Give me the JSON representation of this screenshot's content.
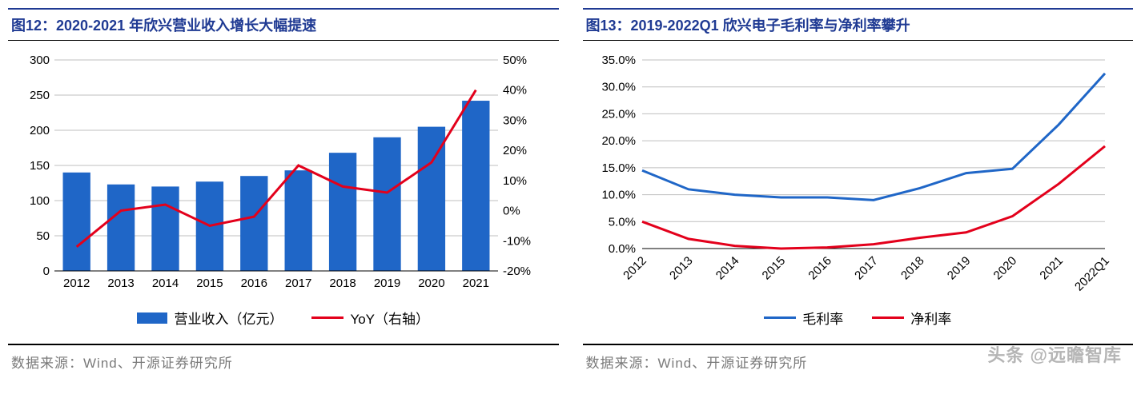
{
  "left": {
    "title": "图12：2020-2021 年欣兴营业收入增长大幅提速",
    "chart": {
      "type": "bar+line",
      "categories": [
        "2012",
        "2013",
        "2014",
        "2015",
        "2016",
        "2017",
        "2018",
        "2019",
        "2020",
        "2021"
      ],
      "bar_values": [
        140,
        123,
        120,
        127,
        135,
        143,
        168,
        190,
        205,
        242
      ],
      "line_values": [
        -12,
        0,
        2,
        -5,
        -2,
        15,
        8,
        6,
        16,
        40
      ],
      "bar_color": "#1f66c7",
      "line_color": "#e3001b",
      "line_width": 3,
      "left_axis": {
        "min": 0,
        "max": 300,
        "step": 50,
        "label_fontsize": 15
      },
      "right_axis": {
        "min": -20,
        "max": 50,
        "step": 10,
        "suffix": "%",
        "label_fontsize": 15
      },
      "grid_color": "#bfbfbf",
      "background": "#ffffff",
      "bar_width_ratio": 0.62,
      "legend": {
        "bar_label": "营业收入（亿元）",
        "line_label": "YoY（右轴）"
      }
    },
    "source": "数据来源：Wind、开源证券研究所"
  },
  "right": {
    "title": "图13：2019-2022Q1 欣兴电子毛利率与净利率攀升",
    "chart": {
      "type": "line",
      "categories": [
        "2012",
        "2013",
        "2014",
        "2015",
        "2016",
        "2017",
        "2018",
        "2019",
        "2020",
        "2021",
        "2022Q1"
      ],
      "series": [
        {
          "name": "毛利率",
          "color": "#1f66c7",
          "width": 3,
          "values": [
            14.5,
            11.0,
            10.0,
            9.5,
            9.5,
            9.0,
            11.2,
            14.0,
            14.8,
            23.0,
            32.5
          ]
        },
        {
          "name": "净利率",
          "color": "#e3001b",
          "width": 3,
          "values": [
            5.0,
            1.8,
            0.5,
            0.0,
            0.2,
            0.8,
            2.0,
            3.0,
            6.0,
            12.0,
            19.0
          ]
        }
      ],
      "y_axis": {
        "min": 0,
        "max": 35,
        "step": 5,
        "suffix": ".0%",
        "label_fontsize": 15
      },
      "grid_color": "#bfbfbf",
      "background": "#ffffff",
      "xlabel_rotate": -45
    },
    "source": "数据来源：Wind、开源证券研究所"
  },
  "watermark": "头条 @远瞻智库"
}
